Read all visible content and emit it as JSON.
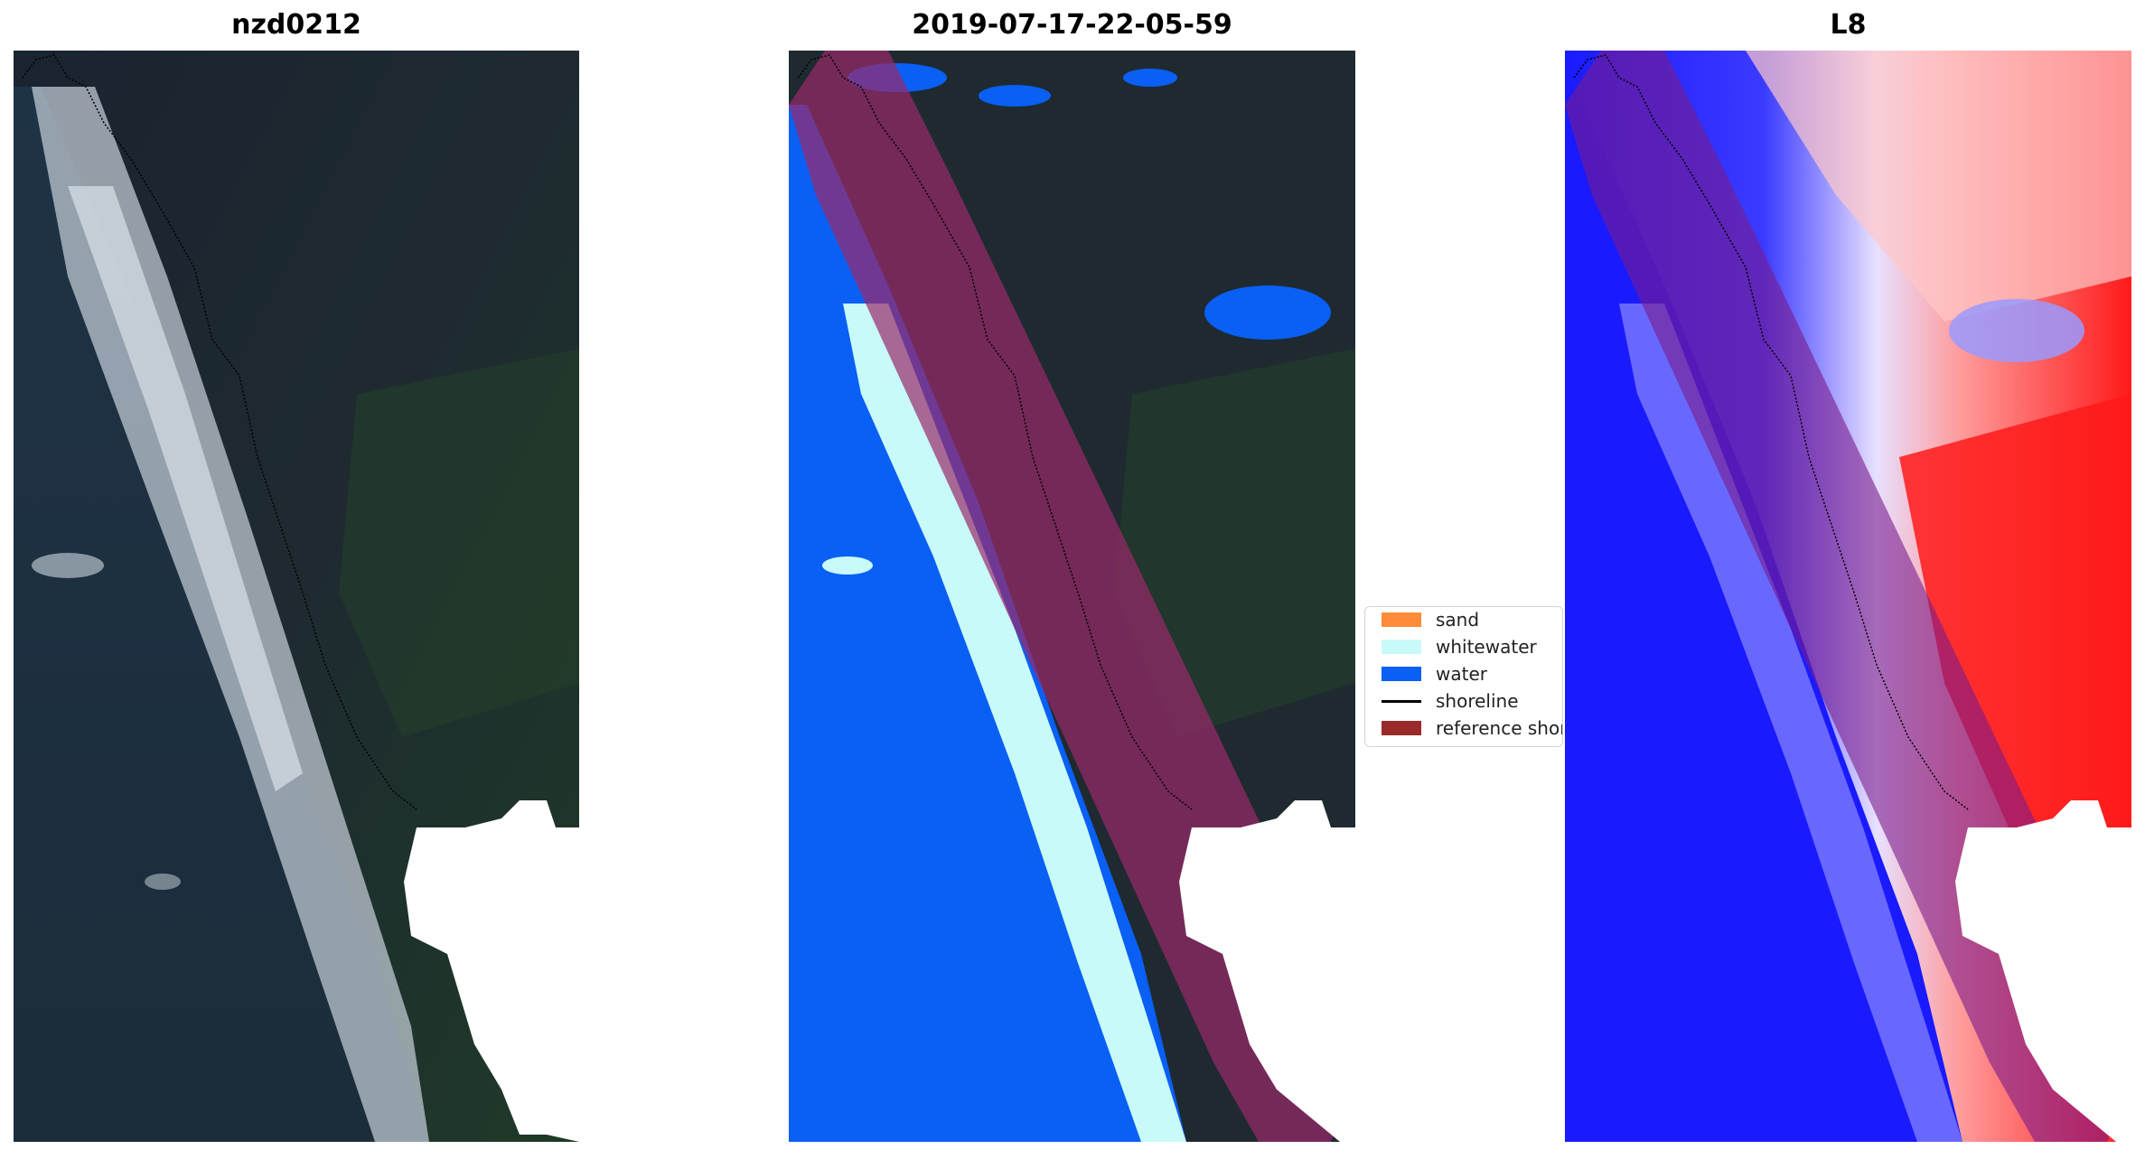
{
  "panels": {
    "left": {
      "title": "nzd0212"
    },
    "middle": {
      "title": "2019-07-17-22-05-59"
    },
    "right": {
      "title": "L8"
    }
  },
  "legend": {
    "items": [
      {
        "label": "sand",
        "color": "#ff8c3a",
        "kind": "patch"
      },
      {
        "label": "whitewater",
        "color": "#c8fafa",
        "kind": "patch"
      },
      {
        "label": "water",
        "color": "#0a5ff5",
        "kind": "patch"
      },
      {
        "label": "shoreline",
        "color": "#000000",
        "kind": "line"
      },
      {
        "label": "reference shoreline buffer",
        "color": "#9a2a2a",
        "kind": "patch"
      }
    ]
  },
  "colors": {
    "land_dark": "#1c2630",
    "ocean": "#1f3140",
    "surf": "#c8d2dc",
    "cloud": "#ffffff",
    "water_class": "#0a5ff5",
    "whitewater_class": "#c8fafa",
    "buffer": "#9a2a6a",
    "index_positive": "#ff1a1a",
    "index_negative": "#1a1aff"
  }
}
